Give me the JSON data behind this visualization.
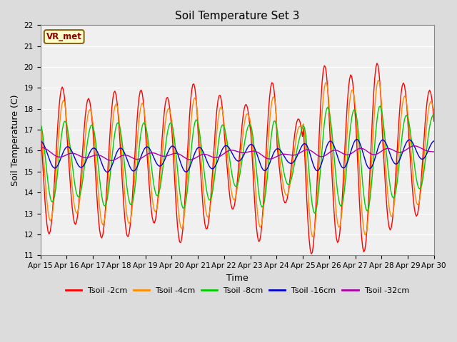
{
  "title": "Soil Temperature Set 3",
  "xlabel": "Time",
  "ylabel": "Soil Temperature (C)",
  "ylim": [
    11.0,
    22.0
  ],
  "yticks": [
    11.0,
    12.0,
    13.0,
    14.0,
    15.0,
    16.0,
    17.0,
    18.0,
    19.0,
    20.0,
    21.0,
    22.0
  ],
  "xtick_labels": [
    "Apr 15",
    "Apr 16",
    "Apr 17",
    "Apr 18",
    "Apr 19",
    "Apr 20",
    "Apr 21",
    "Apr 22",
    "Apr 23",
    "Apr 24",
    "Apr 25",
    "Apr 26",
    "Apr 27",
    "Apr 28",
    "Apr 29",
    "Apr 30"
  ],
  "annotation_text": "VR_met",
  "annotation_color": "#8B0000",
  "annotation_bg": "#FFFFCC",
  "annotation_border": "#8B6914",
  "colors": {
    "Tsoil -2cm": "#FF0000",
    "Tsoil -4cm": "#FF8C00",
    "Tsoil -8cm": "#00CC00",
    "Tsoil -16cm": "#0000CC",
    "Tsoil -32cm": "#AA00AA"
  },
  "bg_color": "#DCDCDC",
  "plot_bg": "#F0F0F0",
  "n_points_per_day": 24,
  "days": 15,
  "daily_amps": [
    3.5,
    3.0,
    3.5,
    3.5,
    3.0,
    3.8,
    3.2,
    2.5,
    3.8,
    2.0,
    4.5,
    4.0,
    4.5,
    3.5,
    3.0
  ],
  "base_trend": [
    15.5,
    15.4,
    15.2,
    15.2,
    15.3,
    15.1,
    15.1,
    15.3,
    15.0,
    15.0,
    15.0,
    15.0,
    15.0,
    15.0,
    15.1
  ]
}
